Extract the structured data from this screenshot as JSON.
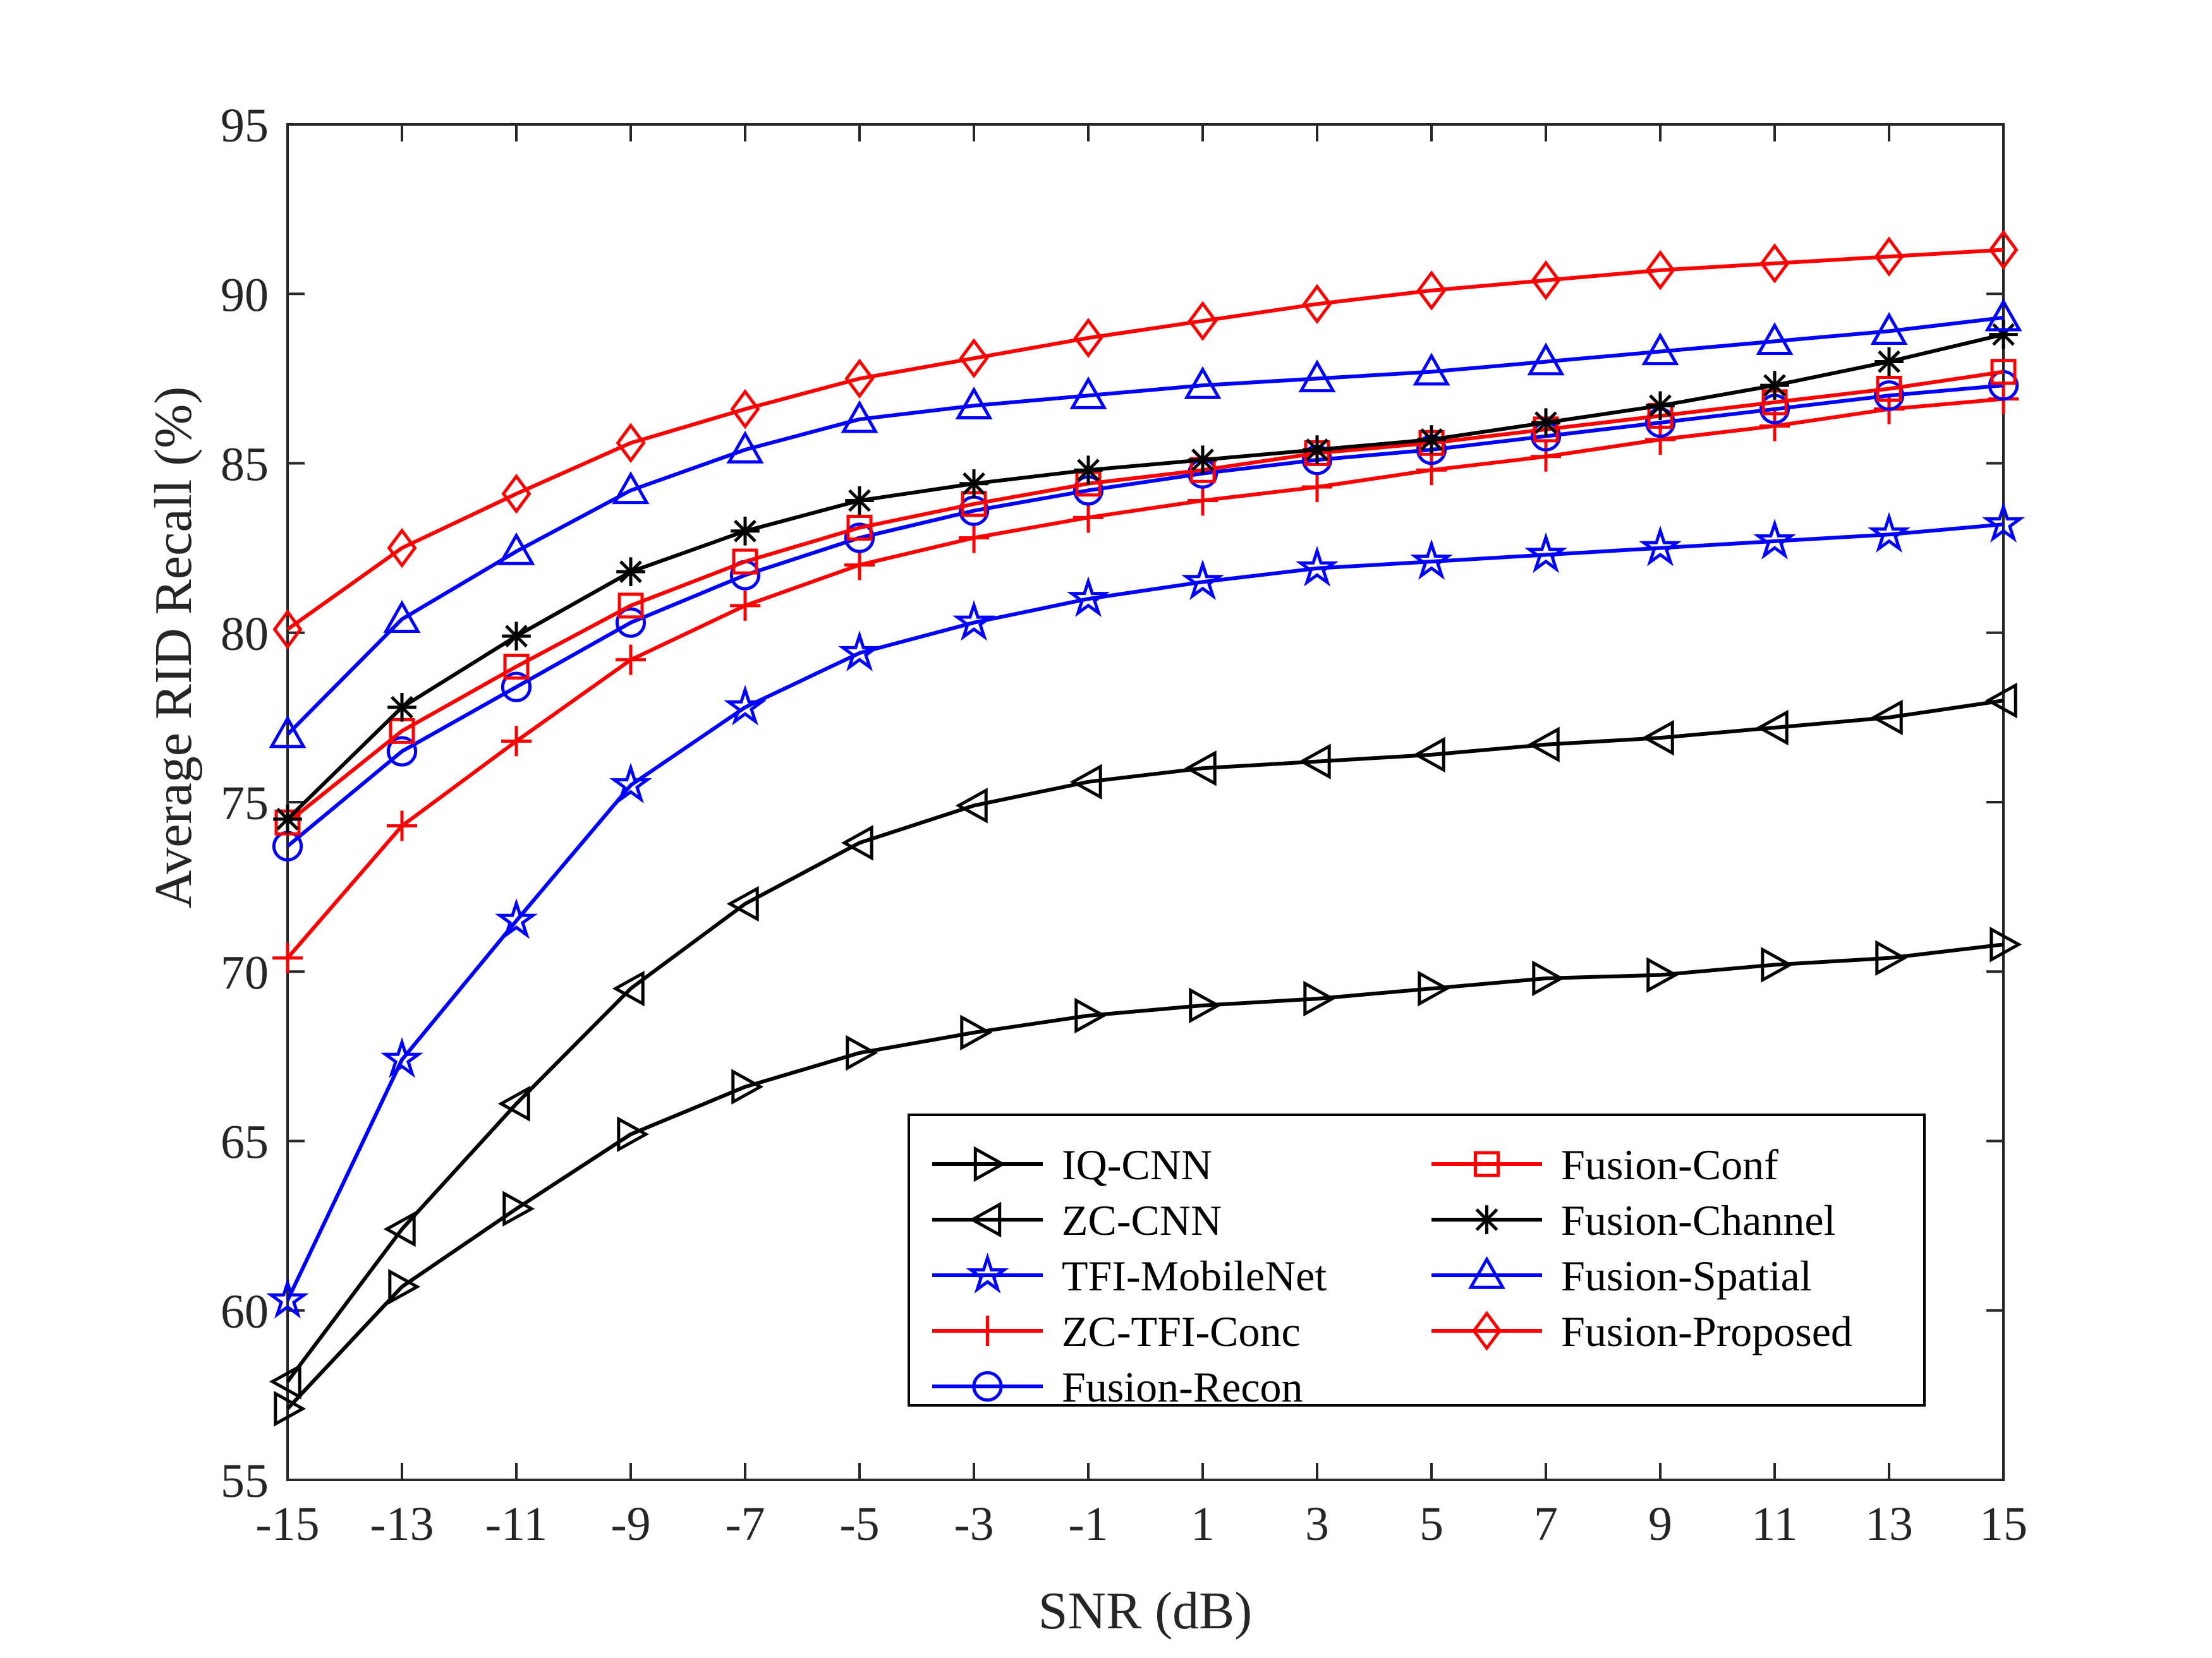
{
  "chart_data": {
    "type": "line",
    "title": "",
    "xlabel": "SNR (dB)",
    "ylabel": "Average RID Recall (%)",
    "x": [
      -15,
      -13,
      -11,
      -9,
      -7,
      -5,
      -3,
      -1,
      1,
      3,
      5,
      7,
      9,
      11,
      13,
      15
    ],
    "xlim": [
      -15,
      15
    ],
    "ylim": [
      55,
      95
    ],
    "xticks": [
      "-15",
      "-13",
      "-11",
      "-9",
      "-7",
      "-5",
      "-3",
      "-1",
      "1",
      "3",
      "5",
      "7",
      "9",
      "11",
      "13",
      "15"
    ],
    "yticks": [
      "55",
      "60",
      "65",
      "70",
      "75",
      "80",
      "85",
      "90",
      "95"
    ],
    "grid": false,
    "legend_position": "bottom-right",
    "series": [
      {
        "name": "IQ-CNN",
        "color": "#000000",
        "marker": "triangle-right",
        "values": [
          57.1,
          60.7,
          63.0,
          65.2,
          66.6,
          67.6,
          68.2,
          68.7,
          69.0,
          69.2,
          69.5,
          69.8,
          69.9,
          70.2,
          70.4,
          70.8
        ]
      },
      {
        "name": "ZC-CNN",
        "color": "#000000",
        "marker": "triangle-left",
        "values": [
          57.9,
          62.4,
          66.1,
          69.5,
          72.0,
          73.8,
          74.9,
          75.6,
          76.0,
          76.2,
          76.4,
          76.7,
          76.9,
          77.2,
          77.5,
          78.0
        ]
      },
      {
        "name": "TFI-MobileNet",
        "color": "#0000ff",
        "marker": "pentagram",
        "values": [
          60.3,
          67.4,
          71.5,
          75.5,
          77.8,
          79.4,
          80.3,
          81.0,
          81.5,
          81.9,
          82.1,
          82.3,
          82.5,
          82.7,
          82.9,
          83.2
        ]
      },
      {
        "name": "ZC-TFI-Conc",
        "color": "#ff0000",
        "marker": "plus",
        "values": [
          70.4,
          74.3,
          76.8,
          79.2,
          80.8,
          82.0,
          82.8,
          83.4,
          83.9,
          84.3,
          84.8,
          85.2,
          85.7,
          86.1,
          86.6,
          86.9
        ]
      },
      {
        "name": "Fusion-Recon",
        "color": "#0000ff",
        "marker": "circle",
        "values": [
          73.7,
          76.5,
          78.4,
          80.3,
          81.7,
          82.8,
          83.6,
          84.2,
          84.7,
          85.1,
          85.4,
          85.8,
          86.2,
          86.6,
          87.0,
          87.3
        ]
      },
      {
        "name": "Fusion-Conf",
        "color": "#ff0000",
        "marker": "square",
        "values": [
          74.4,
          77.1,
          79.0,
          80.8,
          82.1,
          83.1,
          83.8,
          84.4,
          84.8,
          85.3,
          85.6,
          86.0,
          86.4,
          86.8,
          87.2,
          87.7
        ]
      },
      {
        "name": "Fusion-Channel",
        "color": "#000000",
        "marker": "asterisk",
        "values": [
          74.5,
          77.8,
          79.9,
          81.8,
          83.0,
          83.9,
          84.4,
          84.8,
          85.1,
          85.4,
          85.7,
          86.2,
          86.7,
          87.3,
          88.0,
          88.8
        ]
      },
      {
        "name": "Fusion-Spatial",
        "color": "#0000ff",
        "marker": "triangle-up",
        "values": [
          77.0,
          80.4,
          82.4,
          84.2,
          85.4,
          86.3,
          86.7,
          87.0,
          87.3,
          87.5,
          87.7,
          88.0,
          88.3,
          88.6,
          88.9,
          89.3
        ]
      },
      {
        "name": "Fusion-Proposed",
        "color": "#ff0000",
        "marker": "diamond",
        "values": [
          80.1,
          82.5,
          84.1,
          85.6,
          86.6,
          87.5,
          88.1,
          88.7,
          89.2,
          89.7,
          90.1,
          90.4,
          90.7,
          90.9,
          91.1,
          91.3
        ]
      }
    ]
  }
}
